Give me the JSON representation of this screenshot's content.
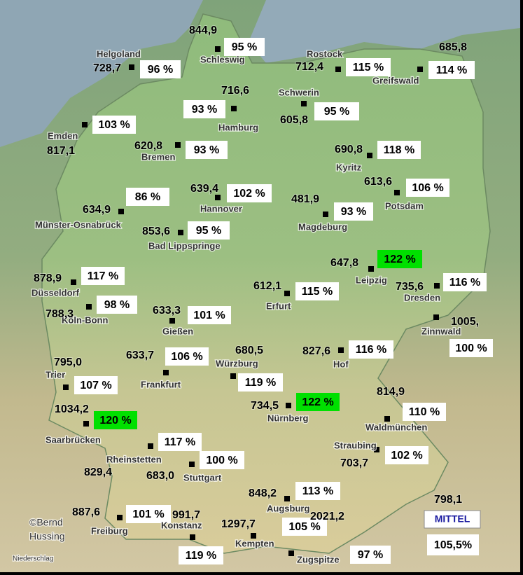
{
  "stations": [
    {
      "name": "Schleswig",
      "amount": "844,9",
      "percent": "95 %",
      "highlight": false
    },
    {
      "name": "Helgoland",
      "amount": "728,7",
      "percent": "96 %",
      "highlight": false
    },
    {
      "name": "Rostock",
      "amount": "712,4",
      "percent": "115 %",
      "highlight": false
    },
    {
      "name": "Greifswald",
      "amount": "685,8",
      "percent": "114 %",
      "highlight": false
    },
    {
      "name": "Hamburg",
      "amount": "716,6",
      "percent": "93 %",
      "highlight": false
    },
    {
      "name": "Schwerin",
      "amount": "605,8",
      "percent": "95 %",
      "highlight": false
    },
    {
      "name": "Emden",
      "amount": "817,1",
      "percent": "103 %",
      "highlight": false
    },
    {
      "name": "Bremen",
      "amount": "620,8",
      "percent": "93 %",
      "highlight": false
    },
    {
      "name": "Kyritz",
      "amount": "690,8",
      "percent": "118 %",
      "highlight": false
    },
    {
      "name": "Hannover",
      "amount": "639,4",
      "percent": "102 %",
      "highlight": false
    },
    {
      "name": "Potsdam",
      "amount": "613,6",
      "percent": "106 %",
      "highlight": false
    },
    {
      "name": "Münster-Osnabrück",
      "amount": "634,9",
      "percent": "86 %",
      "highlight": false
    },
    {
      "name": "Magdeburg",
      "amount": "481,9",
      "percent": "93 %",
      "highlight": false
    },
    {
      "name": "Bad Lippspringe",
      "amount": "853,6",
      "percent": "95 %",
      "highlight": false
    },
    {
      "name": "Leipzig",
      "amount": "647,8",
      "percent": "122 %",
      "highlight": true
    },
    {
      "name": "Düsseldorf",
      "amount": "878,9",
      "percent": "117 %",
      "highlight": false
    },
    {
      "name": "Erfurt",
      "amount": "612,1",
      "percent": "115 %",
      "highlight": false
    },
    {
      "name": "Dresden",
      "amount": "735,6",
      "percent": "116 %",
      "highlight": false
    },
    {
      "name": "Köln-Bonn",
      "amount": "788,3",
      "percent": "98 %",
      "highlight": false
    },
    {
      "name": "Gießen",
      "amount": "633,3",
      "percent": "101 %",
      "highlight": false
    },
    {
      "name": "Zinnwald",
      "amount": "1005,",
      "percent": "100 %",
      "highlight": false
    },
    {
      "name": "Hof",
      "amount": "827,6",
      "percent": "116 %",
      "highlight": false
    },
    {
      "name": "Würzburg",
      "amount": "680,5",
      "percent": "119 %",
      "highlight": false
    },
    {
      "name": "Frankfurt",
      "amount": "633,7",
      "percent": "106 %",
      "highlight": false
    },
    {
      "name": "Trier",
      "amount": "795,0",
      "percent": "107 %",
      "highlight": false
    },
    {
      "name": "Nürnberg",
      "amount": "734,5",
      "percent": "122 %",
      "highlight": true
    },
    {
      "name": "Waldmünchen",
      "amount": "814,9",
      "percent": "110 %",
      "highlight": false
    },
    {
      "name": "Saarbrücken",
      "amount": "1034,2",
      "percent": "120 %",
      "highlight": true
    },
    {
      "name": "Straubing",
      "amount": "703,7",
      "percent": "102 %",
      "highlight": false
    },
    {
      "name": "Rheinstetten",
      "amount": "829,4",
      "percent": "117 %",
      "highlight": false
    },
    {
      "name": "Stuttgart",
      "amount": "683,0",
      "percent": "100 %",
      "highlight": false
    },
    {
      "name": "Augsburg",
      "amount": "848,2",
      "percent": "113 %",
      "highlight": false
    },
    {
      "name": "Freiburg",
      "amount": "887,6",
      "percent": "101 %",
      "highlight": false
    },
    {
      "name": "Konstanz",
      "amount": "991,7",
      "percent": "119 %",
      "highlight": false
    },
    {
      "name": "Kempten",
      "amount": "1297,7",
      "percent": "105 %",
      "highlight": false
    },
    {
      "name": "Zugspitze",
      "amount": "2021,2",
      "percent": "97 %",
      "highlight": false
    }
  ],
  "legend": {
    "label": "MITTEL",
    "amount": "798,1",
    "percent": "105,5%"
  },
  "credit": [
    "©Bernd",
    "Hussing"
  ],
  "caption": "Niederschlag"
}
